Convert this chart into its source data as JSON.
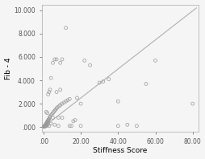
{
  "title": "",
  "xlabel": "Stiffness Score",
  "ylabel": "Fib - 4",
  "xlim": [
    -1,
    83
  ],
  "ylim": [
    -0.4,
    10.5
  ],
  "xticks": [
    0.0,
    20.0,
    40.0,
    60.0,
    80.0
  ],
  "yticks": [
    0.0,
    2.0,
    4.0,
    6.0,
    8.0,
    10.0
  ],
  "xtick_labels": [
    ".00",
    "20.00",
    "40.00",
    "60.00",
    "80.00"
  ],
  "ytick_labels": [
    ".000",
    "2.000",
    "4.000",
    "6.000",
    "8.000",
    "10.000"
  ],
  "scatter_facecolor": "none",
  "scatter_edge_color": "#999999",
  "line_color": "#b0b0b0",
  "background_color": "#f5f5f5",
  "points": [
    [
      0.2,
      0.02
    ],
    [
      0.3,
      0.05
    ],
    [
      0.4,
      0.08
    ],
    [
      0.5,
      0.03
    ],
    [
      0.6,
      0.1
    ],
    [
      0.7,
      0.12
    ],
    [
      0.8,
      0.07
    ],
    [
      0.9,
      0.15
    ],
    [
      1.0,
      0.2
    ],
    [
      1.1,
      0.18
    ],
    [
      1.2,
      0.08
    ],
    [
      1.3,
      0.25
    ],
    [
      1.4,
      0.1
    ],
    [
      1.5,
      0.3
    ],
    [
      1.6,
      0.22
    ],
    [
      1.7,
      0.35
    ],
    [
      1.8,
      0.4
    ],
    [
      2.0,
      0.15
    ],
    [
      2.0,
      0.45
    ],
    [
      2.2,
      0.5
    ],
    [
      2.4,
      0.55
    ],
    [
      2.5,
      0.28
    ],
    [
      2.6,
      0.6
    ],
    [
      2.8,
      0.65
    ],
    [
      3.0,
      0.7
    ],
    [
      3.0,
      0.1
    ],
    [
      3.2,
      0.8
    ],
    [
      3.5,
      0.9
    ],
    [
      4.0,
      1.0
    ],
    [
      4.5,
      1.1
    ],
    [
      5.0,
      1.2
    ],
    [
      5.5,
      1.3
    ],
    [
      6.0,
      1.4
    ],
    [
      6.5,
      1.5
    ],
    [
      7.0,
      1.6
    ],
    [
      7.5,
      1.7
    ],
    [
      8.0,
      0.8
    ],
    [
      8.5,
      1.8
    ],
    [
      9.0,
      1.9
    ],
    [
      10.0,
      2.0
    ],
    [
      10.0,
      0.8
    ],
    [
      11.0,
      2.1
    ],
    [
      12.0,
      2.2
    ],
    [
      13.0,
      2.3
    ],
    [
      14.0,
      2.4
    ],
    [
      14.0,
      0.1
    ],
    [
      15.0,
      0.1
    ],
    [
      16.0,
      0.5
    ],
    [
      17.0,
      0.6
    ],
    [
      18.0,
      2.5
    ],
    [
      20.0,
      2.0
    ],
    [
      20.0,
      0.1
    ],
    [
      3.0,
      3.0
    ],
    [
      4.0,
      4.2
    ],
    [
      5.0,
      5.5
    ],
    [
      6.0,
      5.8
    ],
    [
      7.0,
      5.8
    ],
    [
      9.0,
      5.5
    ],
    [
      10.0,
      5.8
    ],
    [
      2.0,
      1.2
    ],
    [
      1.5,
      1.3
    ],
    [
      2.5,
      2.8
    ],
    [
      3.5,
      3.2
    ],
    [
      4.0,
      0.3
    ],
    [
      5.0,
      0.8
    ],
    [
      6.0,
      0.2
    ],
    [
      7.0,
      3.0
    ],
    [
      8.0,
      0.1
    ],
    [
      9.0,
      3.2
    ],
    [
      12.0,
      8.5
    ],
    [
      22.0,
      5.7
    ],
    [
      25.0,
      5.3
    ],
    [
      30.0,
      3.8
    ],
    [
      32.0,
      3.9
    ],
    [
      35.0,
      4.1
    ],
    [
      40.0,
      2.2
    ],
    [
      40.0,
      0.1
    ],
    [
      45.0,
      0.2
    ],
    [
      50.0,
      0.1
    ],
    [
      55.0,
      3.7
    ],
    [
      60.0,
      5.7
    ],
    [
      80.0,
      2.0
    ]
  ],
  "line_x": [
    0,
    82
  ],
  "line_y": [
    0,
    10.2
  ]
}
